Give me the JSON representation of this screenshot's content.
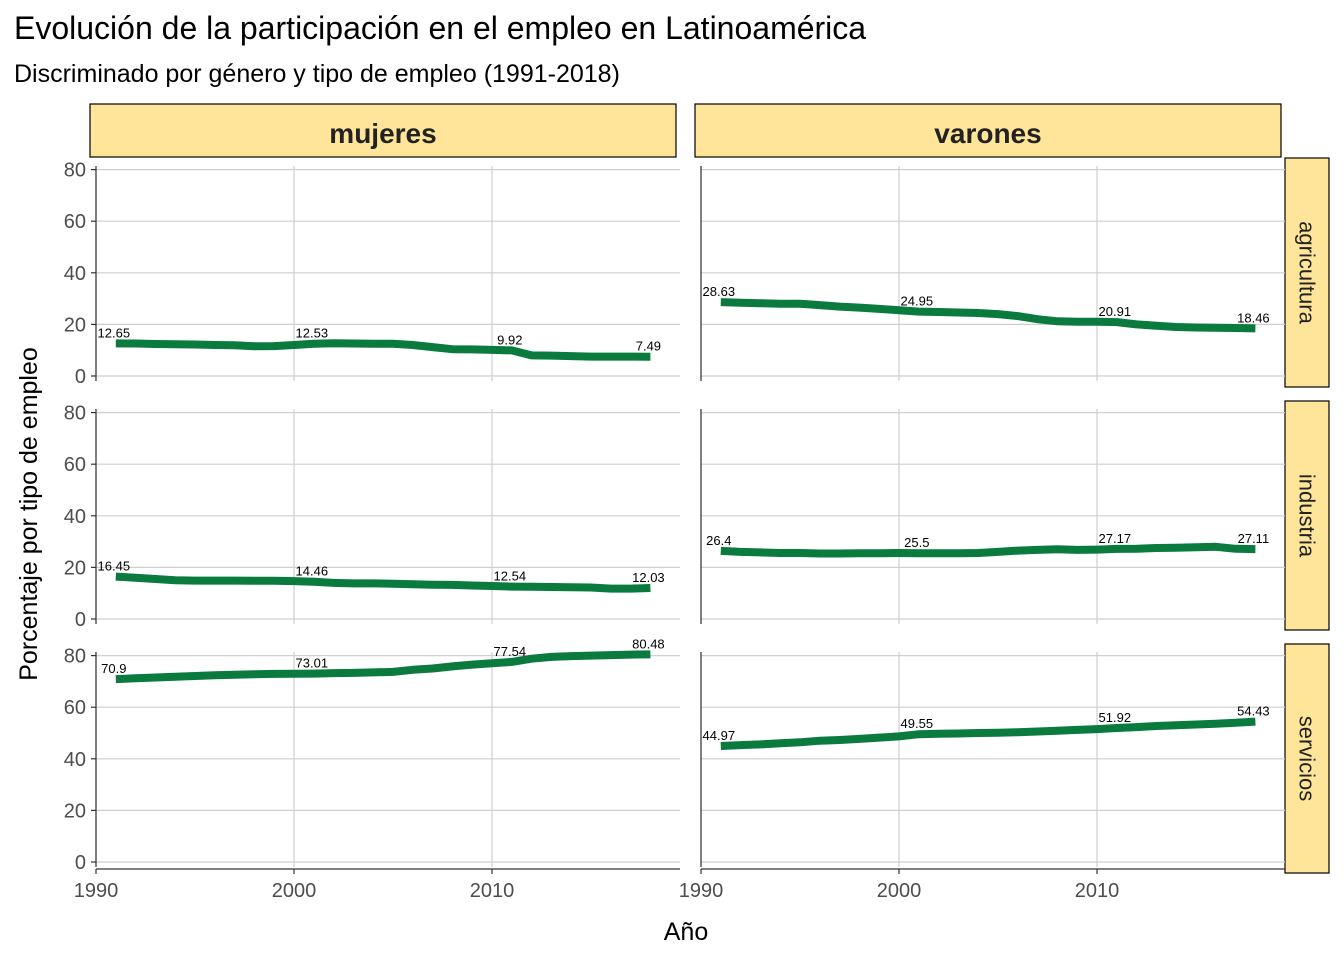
{
  "chart_data": {
    "type": "line",
    "title": "Evolución de la participación en el empleo en Latinoamérica",
    "subtitle": "Discriminado por género y tipo de empleo (1991-2018)",
    "xlabel": "Año",
    "ylabel": "Porcentaje por tipo de empleo",
    "xlim": [
      1990,
      2019
    ],
    "ylim": [
      0,
      85
    ],
    "xticks": [
      1990,
      2000,
      2010
    ],
    "yticks": [
      0,
      20,
      40,
      60,
      80
    ],
    "grid": true,
    "series_color": "#0A7A3E",
    "strip_fill": "#FEE599",
    "column_facets": [
      "mujeres",
      "varones"
    ],
    "row_facets": [
      "agricultura",
      "industria",
      "servicios"
    ],
    "x": [
      1991,
      1992,
      1993,
      1994,
      1995,
      1996,
      1997,
      1998,
      1999,
      2000,
      2001,
      2002,
      2003,
      2004,
      2005,
      2006,
      2007,
      2008,
      2009,
      2010,
      2011,
      2012,
      2013,
      2014,
      2015,
      2016,
      2017,
      2018
    ],
    "panels": [
      {
        "gender": "mujeres",
        "sector": "agricultura",
        "values": [
          12.65,
          12.6,
          12.4,
          12.3,
          12.2,
          12.0,
          11.9,
          11.5,
          11.6,
          12.0,
          12.53,
          12.7,
          12.6,
          12.5,
          12.5,
          12.0,
          11.2,
          10.4,
          10.3,
          10.1,
          9.92,
          8.0,
          7.9,
          7.7,
          7.5,
          7.5,
          7.5,
          7.49
        ],
        "labels": [
          {
            "x": 1991,
            "y": 12.65,
            "text": "12.65"
          },
          {
            "x": 2001,
            "y": 12.53,
            "text": "12.53"
          },
          {
            "x": 2011,
            "y": 9.92,
            "text": "9.92"
          },
          {
            "x": 2018,
            "y": 7.49,
            "text": "7.49"
          }
        ]
      },
      {
        "gender": "varones",
        "sector": "agricultura",
        "values": [
          28.63,
          28.4,
          28.2,
          28.0,
          28.0,
          27.5,
          26.9,
          26.5,
          26.0,
          25.5,
          24.95,
          24.8,
          24.6,
          24.4,
          24.0,
          23.2,
          22.0,
          21.2,
          21.0,
          21.0,
          20.91,
          20.0,
          19.5,
          19.0,
          18.8,
          18.7,
          18.6,
          18.46
        ],
        "labels": [
          {
            "x": 1991,
            "y": 28.63,
            "text": "28.63"
          },
          {
            "x": 2001,
            "y": 24.95,
            "text": "24.95"
          },
          {
            "x": 2011,
            "y": 20.91,
            "text": "20.91"
          },
          {
            "x": 2018,
            "y": 18.46,
            "text": "18.46"
          }
        ]
      },
      {
        "gender": "mujeres",
        "sector": "industria",
        "values": [
          16.45,
          16.0,
          15.5,
          15.0,
          14.9,
          14.9,
          14.9,
          14.8,
          14.8,
          14.7,
          14.46,
          14.0,
          13.8,
          13.8,
          13.7,
          13.5,
          13.3,
          13.2,
          13.0,
          12.8,
          12.54,
          12.5,
          12.4,
          12.3,
          12.2,
          11.8,
          11.8,
          12.03
        ],
        "labels": [
          {
            "x": 1991,
            "y": 16.45,
            "text": "16.45"
          },
          {
            "x": 2001,
            "y": 14.46,
            "text": "14.46"
          },
          {
            "x": 2011,
            "y": 12.54,
            "text": "12.54"
          },
          {
            "x": 2018,
            "y": 12.03,
            "text": "12.03"
          }
        ]
      },
      {
        "gender": "varones",
        "sector": "industria",
        "values": [
          26.4,
          26.0,
          25.8,
          25.6,
          25.6,
          25.4,
          25.4,
          25.5,
          25.5,
          25.6,
          25.5,
          25.5,
          25.5,
          25.6,
          26.0,
          26.5,
          26.8,
          27.0,
          26.8,
          26.9,
          27.17,
          27.2,
          27.5,
          27.6,
          27.8,
          28.0,
          27.2,
          27.11
        ],
        "labels": [
          {
            "x": 1991,
            "y": 26.4,
            "text": "26.4"
          },
          {
            "x": 2001,
            "y": 25.5,
            "text": "25.5"
          },
          {
            "x": 2011,
            "y": 27.17,
            "text": "27.17"
          },
          {
            "x": 2018,
            "y": 27.11,
            "text": "27.11"
          }
        ]
      },
      {
        "gender": "mujeres",
        "sector": "servicios",
        "values": [
          70.9,
          71.2,
          71.5,
          71.8,
          72.1,
          72.4,
          72.6,
          72.8,
          72.9,
          73.0,
          73.01,
          73.2,
          73.3,
          73.5,
          73.7,
          74.5,
          75.0,
          75.8,
          76.5,
          77.0,
          77.54,
          78.8,
          79.5,
          79.8,
          80.0,
          80.2,
          80.4,
          80.48
        ],
        "labels": [
          {
            "x": 1991,
            "y": 70.9,
            "text": "70.9"
          },
          {
            "x": 2001,
            "y": 73.01,
            "text": "73.01"
          },
          {
            "x": 2011,
            "y": 77.54,
            "text": "77.54"
          },
          {
            "x": 2018,
            "y": 80.48,
            "text": "80.48"
          }
        ]
      },
      {
        "gender": "varones",
        "sector": "servicios",
        "values": [
          44.97,
          45.3,
          45.6,
          46.0,
          46.4,
          47.0,
          47.3,
          47.7,
          48.2,
          48.7,
          49.55,
          49.7,
          49.8,
          50.0,
          50.1,
          50.3,
          50.6,
          50.9,
          51.2,
          51.5,
          51.92,
          52.3,
          52.7,
          53.0,
          53.3,
          53.6,
          54.0,
          54.43
        ],
        "labels": [
          {
            "x": 1991,
            "y": 44.97,
            "text": "44.97"
          },
          {
            "x": 2001,
            "y": 49.55,
            "text": "49.55"
          },
          {
            "x": 2011,
            "y": 51.92,
            "text": "51.92"
          },
          {
            "x": 2018,
            "y": 54.43,
            "text": "54.43"
          }
        ]
      }
    ]
  }
}
